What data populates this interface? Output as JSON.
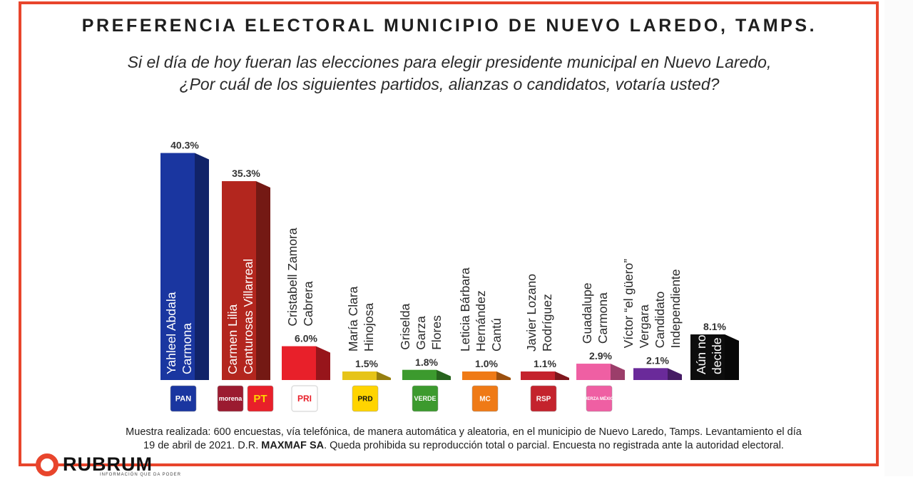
{
  "title": "PREFERENCIA ELECTORAL MUNICIPIO DE NUEVO LAREDO, TAMPS.",
  "question_line1": "Si el día de hoy fueran las elecciones para elegir presidente municipal en Nuevo Laredo,",
  "question_line2": "¿Por cuál de los siguientes partidos, alianzas o candidatos, votaría usted?",
  "footnote_line1": "Muestra realizada: 600 encuestas, vía telefónica, de manera automática y aleatoria, en el municipio de Nuevo Laredo, Tamps.  Levantamiento el día",
  "footnote_line2_pre": "19 de abril  de 2021. D.R. ",
  "footnote_line2_bold": "MAXMAF SA",
  "footnote_line2_post": ". Queda prohibida su reproducción total o parcial. Encuesta no registrada ante la autoridad electoral.",
  "logo_text": "RUBRUM",
  "logo_tagline": "INFORMACIÓN QUE DA PODER",
  "chart_data": {
    "type": "bar",
    "categories": [
      [
        "Yahleel Abdala",
        "Carmona"
      ],
      [
        "Carmen Lilia",
        "Canturosas Villarreal"
      ],
      [
        "Cristabell Zamora",
        "Cabrera"
      ],
      [
        "María Clara",
        "Hinojosa"
      ],
      [
        "Griselda",
        "Garza",
        "Flores"
      ],
      [
        "Leticia Bárbara",
        "Hernández",
        "Cantú"
      ],
      [
        "Javier Lozano",
        "Rodríguez"
      ],
      [
        "Guadalupe",
        "Carmona"
      ],
      [
        "Víctor “el güero”",
        "Vergara",
        "Candidato",
        "Independiente"
      ],
      [
        "Aún no",
        "decide"
      ]
    ],
    "values": [
      40.3,
      35.3,
      6.0,
      1.5,
      1.8,
      1.0,
      1.1,
      2.9,
      2.1,
      8.1
    ],
    "value_labels": [
      "40.3%",
      "35.3%",
      "6.0%",
      "1.5%",
      "1.8%",
      "1.0%",
      "1.1%",
      "2.9%",
      "2.1%",
      "8.1%"
    ],
    "colors": [
      "#1a36a0",
      "#b3261e",
      "#e8202a",
      "#e6c419",
      "#3c9a2e",
      "#ef7a16",
      "#c4232d",
      "#ef5fa3",
      "#6a2a9a",
      "#0d0d0d"
    ],
    "party_logos": [
      [
        "PAN"
      ],
      [
        "morena",
        "PT"
      ],
      [
        "PRI"
      ],
      [
        "PRD"
      ],
      [
        "VERDE"
      ],
      [
        "MC"
      ],
      [
        "RSP"
      ],
      [
        "FUERZA MÉXICO"
      ],
      [],
      []
    ],
    "label_inside_bar": [
      true,
      true,
      false,
      false,
      false,
      false,
      false,
      false,
      false,
      true
    ]
  }
}
